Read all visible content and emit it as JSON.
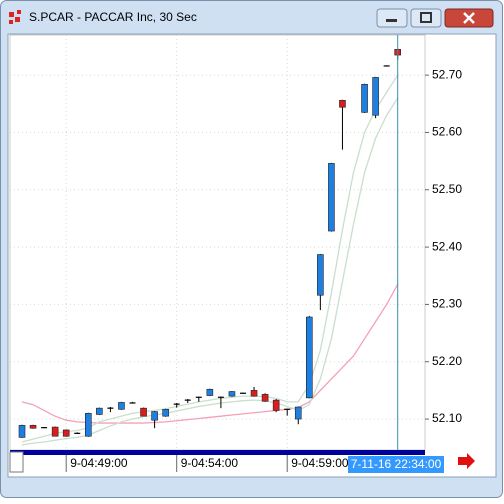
{
  "window_title": "S.PCAR - PACCAR Inc, 30 Sec",
  "chart_data": {
    "type": "candlestick",
    "categories": [
      null,
      null,
      null,
      null,
      "9-04:49:00",
      null,
      null,
      null,
      null,
      null,
      null,
      null,
      null,
      null,
      "9-04:54:00",
      null,
      null,
      null,
      null,
      null,
      null,
      null,
      null,
      null,
      "9-04:59:00",
      null,
      null,
      null,
      null,
      null,
      null,
      null,
      null,
      null,
      null
    ],
    "cursor_label": "7-11-16 22:34:00",
    "open": [
      52.068,
      52.089,
      52.085,
      52.086,
      52.081,
      52.075,
      52.07,
      52.108,
      52.119,
      52.117,
      52.128,
      52.119,
      52.098,
      52.105,
      52.126,
      52.133,
      52.138,
      52.141,
      52.138,
      52.14,
      52.145,
      52.15,
      52.143,
      52.133,
      52.117,
      52.1,
      52.137,
      52.316,
      52.428,
      52.656,
      null,
      52.635,
      52.63,
      52.716,
      52.745
    ],
    "high": [
      52.09,
      52.09,
      52.086,
      52.087,
      52.082,
      52.077,
      52.111,
      52.12,
      52.121,
      52.13,
      52.13,
      52.12,
      52.114,
      52.118,
      52.128,
      52.135,
      52.139,
      52.153,
      52.139,
      52.149,
      52.146,
      52.156,
      52.145,
      52.135,
      52.118,
      52.122,
      52.28,
      52.388,
      52.547,
      52.657,
      null,
      52.685,
      52.697,
      52.717,
      52.746
    ],
    "low": [
      52.067,
      52.083,
      52.084,
      52.07,
      52.069,
      52.075,
      52.069,
      52.107,
      52.112,
      52.116,
      52.128,
      52.105,
      52.084,
      52.104,
      52.12,
      52.128,
      52.13,
      52.14,
      52.119,
      52.139,
      52.144,
      52.139,
      52.13,
      52.112,
      52.106,
      52.091,
      52.136,
      52.29,
      52.427,
      52.57,
      null,
      52.634,
      52.625,
      52.715,
      52.727
    ],
    "close": [
      52.089,
      52.084,
      52.085,
      52.07,
      52.07,
      52.075,
      52.11,
      52.119,
      52.119,
      52.129,
      52.128,
      52.105,
      52.113,
      52.117,
      52.126,
      52.133,
      52.138,
      52.152,
      52.138,
      52.148,
      52.145,
      52.14,
      52.131,
      52.115,
      52.117,
      52.121,
      52.278,
      52.387,
      52.546,
      52.644,
      null,
      52.684,
      52.696,
      52.716,
      52.735
    ],
    "up_color": "#1f7fe0",
    "down_color": "#d81e1e",
    "overlays": [
      {
        "color": "#f4a0b8",
        "values": [
          52.13,
          52.125,
          52.115,
          52.105,
          52.098,
          52.095,
          52.094,
          52.093,
          52.093,
          52.093,
          52.093,
          52.093,
          52.094,
          52.095,
          52.097,
          52.099,
          52.101,
          52.103,
          52.105,
          52.107,
          52.109,
          52.111,
          52.113,
          52.115,
          52.117,
          52.12,
          52.13,
          52.15,
          52.17,
          52.19,
          52.21,
          52.24,
          52.27,
          52.3,
          52.335
        ]
      },
      {
        "color": "#c9dfcc",
        "values": [
          52.06,
          52.065,
          52.07,
          52.075,
          52.078,
          52.08,
          52.085,
          52.095,
          52.1,
          52.105,
          52.11,
          52.113,
          52.115,
          52.118,
          52.122,
          52.126,
          52.13,
          52.133,
          52.136,
          52.138,
          52.14,
          52.14,
          52.139,
          52.136,
          52.13,
          52.13,
          52.16,
          52.22,
          52.32,
          52.43,
          52.53,
          52.6,
          52.64,
          52.67,
          52.7
        ]
      },
      {
        "color": "#c9dfcc",
        "values": [
          52.055,
          52.058,
          52.06,
          52.063,
          52.066,
          52.068,
          52.072,
          52.08,
          52.088,
          52.095,
          52.1,
          52.104,
          52.107,
          52.11,
          52.114,
          52.118,
          52.122,
          52.125,
          52.128,
          52.13,
          52.132,
          52.133,
          52.132,
          52.128,
          52.122,
          52.115,
          52.125,
          52.17,
          52.24,
          52.34,
          52.44,
          52.53,
          52.59,
          52.63,
          52.66
        ]
      }
    ],
    "ylim": [
      52.046,
      52.77
    ],
    "yticks": [
      {
        "value": 52.1,
        "label": "52.10"
      },
      {
        "value": 52.2,
        "label": "52.20"
      },
      {
        "value": 52.3,
        "label": "52.30"
      },
      {
        "value": 52.4,
        "label": "52.40"
      },
      {
        "value": 52.5,
        "label": "52.50"
      },
      {
        "value": 52.6,
        "label": "52.60"
      },
      {
        "value": 52.7,
        "label": "52.70"
      }
    ],
    "grid": true
  }
}
